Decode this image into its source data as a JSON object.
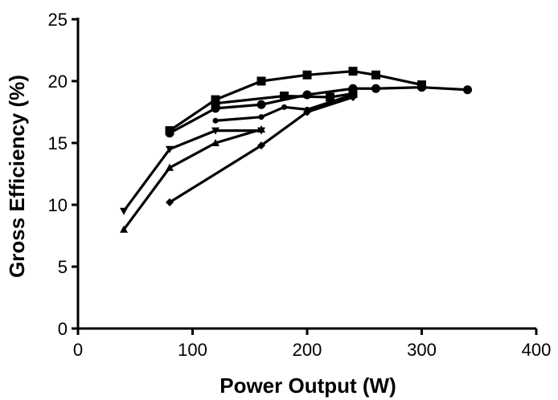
{
  "chart_data": {
    "type": "line",
    "title": "",
    "xlabel": "Power Output (W)",
    "ylabel": "Gross Efficiency (%)",
    "xlim": [
      0,
      400
    ],
    "ylim": [
      0,
      25
    ],
    "xticks": [
      0,
      100,
      200,
      300,
      400
    ],
    "yticks": [
      0,
      5,
      10,
      15,
      20,
      25
    ],
    "grid": false,
    "legend": "none",
    "color": "#000000",
    "series": [
      {
        "marker": "square",
        "x": [
          80,
          120,
          160,
          200,
          240,
          260,
          300
        ],
        "y": [
          16.0,
          18.5,
          20.0,
          20.5,
          20.8,
          20.5,
          19.7
        ]
      },
      {
        "marker": "circle",
        "x": [
          80,
          120,
          160,
          200,
          240,
          260,
          300,
          340
        ],
        "y": [
          15.8,
          17.8,
          18.1,
          18.9,
          19.4,
          19.4,
          19.5,
          19.3
        ]
      },
      {
        "marker": "small-circle",
        "x": [
          120,
          160,
          180,
          200,
          240
        ],
        "y": [
          16.8,
          17.1,
          17.9,
          17.7,
          18.9
        ]
      },
      {
        "marker": "triangle-down",
        "x": [
          40,
          80,
          120,
          160
        ],
        "y": [
          9.5,
          14.5,
          16.0,
          16.0
        ]
      },
      {
        "marker": "triangle-up",
        "x": [
          40,
          80,
          120,
          160
        ],
        "y": [
          8.0,
          13.0,
          15.0,
          16.1
        ]
      },
      {
        "marker": "diamond",
        "x": [
          80,
          160,
          200,
          240
        ],
        "y": [
          10.2,
          14.8,
          17.5,
          18.7
        ]
      },
      {
        "marker": "square",
        "x": [
          120,
          180,
          220,
          240
        ],
        "y": [
          18.2,
          18.8,
          18.7,
          19.0
        ]
      }
    ]
  }
}
